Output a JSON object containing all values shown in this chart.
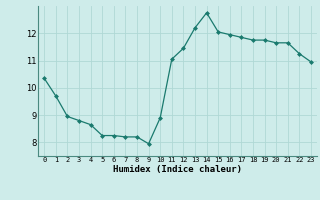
{
  "x": [
    0,
    1,
    2,
    3,
    4,
    5,
    6,
    7,
    8,
    9,
    10,
    11,
    12,
    13,
    14,
    15,
    16,
    17,
    18,
    19,
    20,
    21,
    22,
    23
  ],
  "y": [
    10.35,
    9.7,
    8.95,
    8.8,
    8.65,
    8.25,
    8.25,
    8.2,
    8.2,
    7.95,
    8.9,
    11.05,
    11.45,
    12.2,
    12.75,
    12.05,
    11.95,
    11.85,
    11.75,
    11.75,
    11.65,
    11.65,
    11.25,
    10.95
  ],
  "line_color": "#1a7a6e",
  "marker": "D",
  "marker_size": 2.0,
  "bg_color": "#ceecea",
  "grid_color": "#b0d8d5",
  "xlabel": "Humidex (Indice chaleur)",
  "xlim": [
    -0.5,
    23.5
  ],
  "ylim": [
    7.5,
    13.0
  ],
  "yticks": [
    8,
    9,
    10,
    11,
    12
  ],
  "xticks": [
    0,
    1,
    2,
    3,
    4,
    5,
    6,
    7,
    8,
    9,
    10,
    11,
    12,
    13,
    14,
    15,
    16,
    17,
    18,
    19,
    20,
    21,
    22,
    23
  ]
}
